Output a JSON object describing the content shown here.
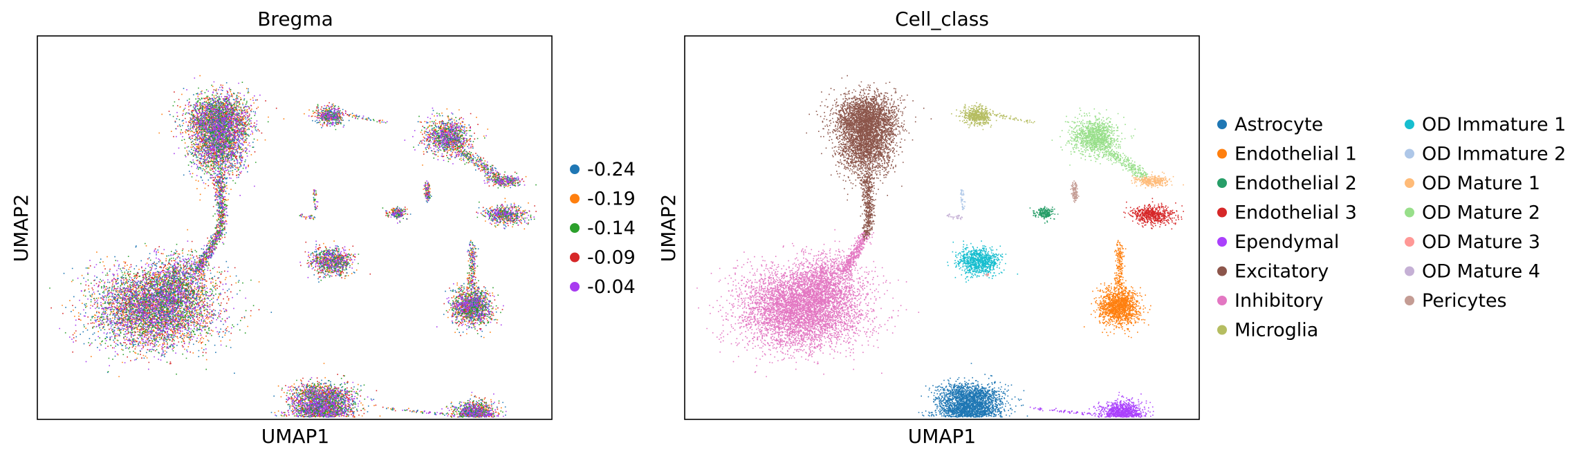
{
  "chart_data": [
    {
      "type": "scatter",
      "title": "Bregma",
      "xlabel": "UMAP1",
      "ylabel": "UMAP2",
      "grid": false,
      "x_ticks": false,
      "y_ticks": false,
      "legend_position": "right",
      "series": [
        {
          "name": "-0.24",
          "color": "#1f77b4"
        },
        {
          "name": "-0.19",
          "color": "#ff7f0e"
        },
        {
          "name": "-0.14",
          "color": "#2ca02c"
        },
        {
          "name": "-0.09",
          "color": "#d62728"
        },
        {
          "name": "-0.04",
          "color": "#a83cf0"
        }
      ]
    },
    {
      "type": "scatter",
      "title": "Cell_class",
      "xlabel": "UMAP1",
      "ylabel": "UMAP2",
      "grid": false,
      "x_ticks": false,
      "y_ticks": false,
      "legend_position": "right",
      "series": [
        {
          "name": "Astrocyte",
          "color": "#1f77b4"
        },
        {
          "name": "Endothelial 1",
          "color": "#ff7f0e"
        },
        {
          "name": "Endothelial 2",
          "color": "#279e68"
        },
        {
          "name": "Endothelial 3",
          "color": "#d62728"
        },
        {
          "name": "Ependymal",
          "color": "#aa40fc"
        },
        {
          "name": "Excitatory",
          "color": "#8c564b"
        },
        {
          "name": "Inhibitory",
          "color": "#e377c2"
        },
        {
          "name": "Microglia",
          "color": "#b5bd61"
        },
        {
          "name": "OD Immature 1",
          "color": "#17becf"
        },
        {
          "name": "OD Immature 2",
          "color": "#aec7e8"
        },
        {
          "name": "OD Mature 1",
          "color": "#ffbb78"
        },
        {
          "name": "OD Mature 2",
          "color": "#98df8a"
        },
        {
          "name": "OD Mature 3",
          "color": "#ff9896"
        },
        {
          "name": "OD Mature 4",
          "color": "#c5b0d5"
        },
        {
          "name": "Pericytes",
          "color": "#c49c94"
        }
      ]
    }
  ]
}
